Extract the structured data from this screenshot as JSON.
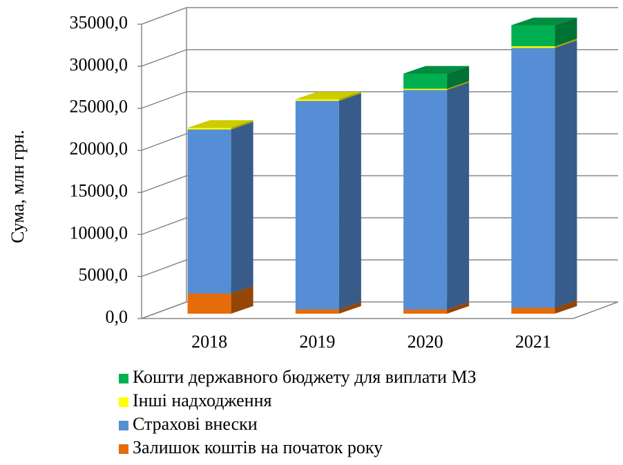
{
  "chart_data": {
    "type": "bar3d_stacked",
    "y_axis_label": "Сума, млн грн.",
    "categories": [
      "2018",
      "2019",
      "2020",
      "2021"
    ],
    "series": [
      {
        "name": "Залишок коштів на початок року",
        "color": "#e46c0a",
        "values": [
          2400,
          500,
          500,
          700
        ]
      },
      {
        "name": "Страхові внески",
        "color": "#558ed5",
        "values": [
          19500,
          24800,
          26100,
          30900
        ]
      },
      {
        "name": "Інші надходження",
        "color": "#ffff00",
        "values": [
          200,
          200,
          150,
          200
        ]
      },
      {
        "name": "Кошти державного бюджету для виплати МЗ",
        "color": "#00b050",
        "values": [
          null,
          null,
          1800,
          2500
        ]
      }
    ],
    "ylim": [
      0,
      35000
    ],
    "yticks": [
      {
        "value": 0,
        "label": "0,0"
      },
      {
        "value": 5000,
        "label": "5000,0"
      },
      {
        "value": 10000,
        "label": "10000,0"
      },
      {
        "value": 15000,
        "label": "15000,0"
      },
      {
        "value": 20000,
        "label": "20000,0"
      },
      {
        "value": 25000,
        "label": "25000,0"
      },
      {
        "value": 30000,
        "label": "30000,0"
      },
      {
        "value": 35000,
        "label": "35000,0"
      }
    ],
    "grid": true
  }
}
